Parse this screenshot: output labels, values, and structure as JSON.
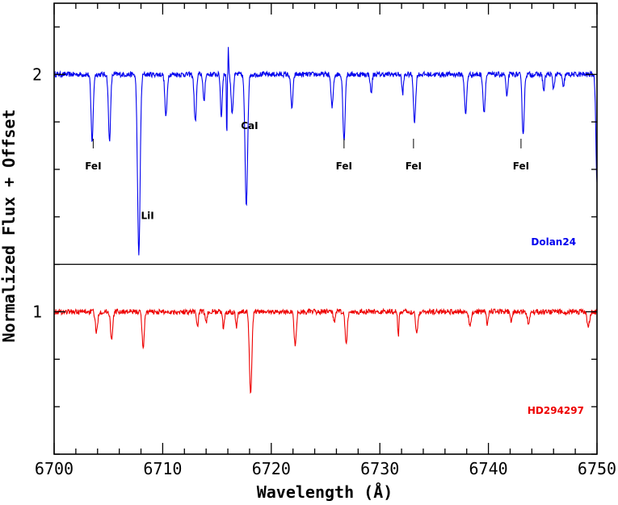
{
  "chart_data": {
    "type": "line",
    "xlabel": "Wavelength (Å)",
    "ylabel": "Normalized Flux + Offset",
    "xlim": [
      6700,
      6750
    ],
    "ylim": [
      0.4,
      2.3
    ],
    "x_ticks": [
      "6700",
      "6710",
      "6720",
      "6730",
      "6740",
      "6750"
    ],
    "y_ticks": [
      "1",
      "2"
    ],
    "x_tick_values": [
      6700,
      6710,
      6720,
      6730,
      6740,
      6750
    ],
    "y_tick_values": [
      1,
      2
    ],
    "separator_y": 1.2,
    "series": [
      {
        "name": "Dolan24",
        "color": "#0000ee",
        "continuum": 2.0,
        "absorption_lines": [
          {
            "x": 6703.5,
            "depth": 0.28,
            "width": 0.1
          },
          {
            "x": 6705.1,
            "depth": 0.28,
            "width": 0.1
          },
          {
            "x": 6707.8,
            "depth": 0.76,
            "width": 0.12
          },
          {
            "x": 6710.3,
            "depth": 0.18,
            "width": 0.1
          },
          {
            "x": 6713.0,
            "depth": 0.2,
            "width": 0.1
          },
          {
            "x": 6713.8,
            "depth": 0.12,
            "width": 0.08
          },
          {
            "x": 6715.4,
            "depth": 0.18,
            "width": 0.08
          },
          {
            "x": 6716.4,
            "depth": 0.16,
            "width": 0.1
          },
          {
            "x": 6717.7,
            "depth": 0.55,
            "width": 0.12
          },
          {
            "x": 6721.9,
            "depth": 0.14,
            "width": 0.1
          },
          {
            "x": 6725.6,
            "depth": 0.14,
            "width": 0.1
          },
          {
            "x": 6726.7,
            "depth": 0.28,
            "width": 0.1
          },
          {
            "x": 6729.2,
            "depth": 0.08,
            "width": 0.08
          },
          {
            "x": 6732.1,
            "depth": 0.08,
            "width": 0.08
          },
          {
            "x": 6733.2,
            "depth": 0.2,
            "width": 0.1
          },
          {
            "x": 6737.9,
            "depth": 0.17,
            "width": 0.1
          },
          {
            "x": 6739.6,
            "depth": 0.16,
            "width": 0.1
          },
          {
            "x": 6741.7,
            "depth": 0.1,
            "width": 0.08
          },
          {
            "x": 6743.2,
            "depth": 0.25,
            "width": 0.1
          },
          {
            "x": 6745.1,
            "depth": 0.07,
            "width": 0.08
          },
          {
            "x": 6746.0,
            "depth": 0.06,
            "width": 0.08
          },
          {
            "x": 6746.9,
            "depth": 0.06,
            "width": 0.08
          },
          {
            "x": 6750.0,
            "depth": 0.45,
            "width": 0.1
          }
        ],
        "emission_spikes": [
          {
            "x": 6716.05,
            "height": 0.12
          },
          {
            "x": 6715.9,
            "height": -0.29
          }
        ]
      },
      {
        "name": "HD294297",
        "color": "#ee0000",
        "continuum": 1.0,
        "absorption_lines": [
          {
            "x": 6703.9,
            "depth": 0.09,
            "width": 0.1
          },
          {
            "x": 6705.3,
            "depth": 0.12,
            "width": 0.1
          },
          {
            "x": 6708.2,
            "depth": 0.15,
            "width": 0.1
          },
          {
            "x": 6713.2,
            "depth": 0.06,
            "width": 0.08
          },
          {
            "x": 6714.0,
            "depth": 0.05,
            "width": 0.08
          },
          {
            "x": 6715.6,
            "depth": 0.07,
            "width": 0.08
          },
          {
            "x": 6716.8,
            "depth": 0.06,
            "width": 0.08
          },
          {
            "x": 6718.1,
            "depth": 0.35,
            "width": 0.11
          },
          {
            "x": 6722.2,
            "depth": 0.14,
            "width": 0.1
          },
          {
            "x": 6725.8,
            "depth": 0.04,
            "width": 0.08
          },
          {
            "x": 6726.9,
            "depth": 0.14,
            "width": 0.1
          },
          {
            "x": 6731.7,
            "depth": 0.1,
            "width": 0.06
          },
          {
            "x": 6733.4,
            "depth": 0.09,
            "width": 0.1
          },
          {
            "x": 6738.3,
            "depth": 0.06,
            "width": 0.1
          },
          {
            "x": 6739.9,
            "depth": 0.05,
            "width": 0.08
          },
          {
            "x": 6742.1,
            "depth": 0.05,
            "width": 0.08
          },
          {
            "x": 6743.7,
            "depth": 0.05,
            "width": 0.1
          },
          {
            "x": 6749.2,
            "depth": 0.06,
            "width": 0.12
          }
        ],
        "emission_spikes": []
      }
    ],
    "line_identifications": [
      {
        "label": "FeI",
        "x": 6703.6,
        "y": 1.6,
        "tick": true
      },
      {
        "label": "LiI",
        "x": 6708.6,
        "y": 1.39,
        "tick": false
      },
      {
        "label": "CaI",
        "x": 6718.0,
        "y": 1.77,
        "tick": false
      },
      {
        "label": "FeI",
        "x": 6726.7,
        "y": 1.6,
        "tick": true
      },
      {
        "label": "FeI",
        "x": 6733.1,
        "y": 1.6,
        "tick": true
      },
      {
        "label": "FeI",
        "x": 6743.0,
        "y": 1.6,
        "tick": true
      }
    ],
    "star_labels": [
      {
        "label": "Dolan24",
        "x": 6746.0,
        "y": 1.28,
        "color": "#0000ee"
      },
      {
        "label": "HD294297",
        "x": 6746.2,
        "y": 0.57,
        "color": "#ee0000"
      }
    ]
  }
}
